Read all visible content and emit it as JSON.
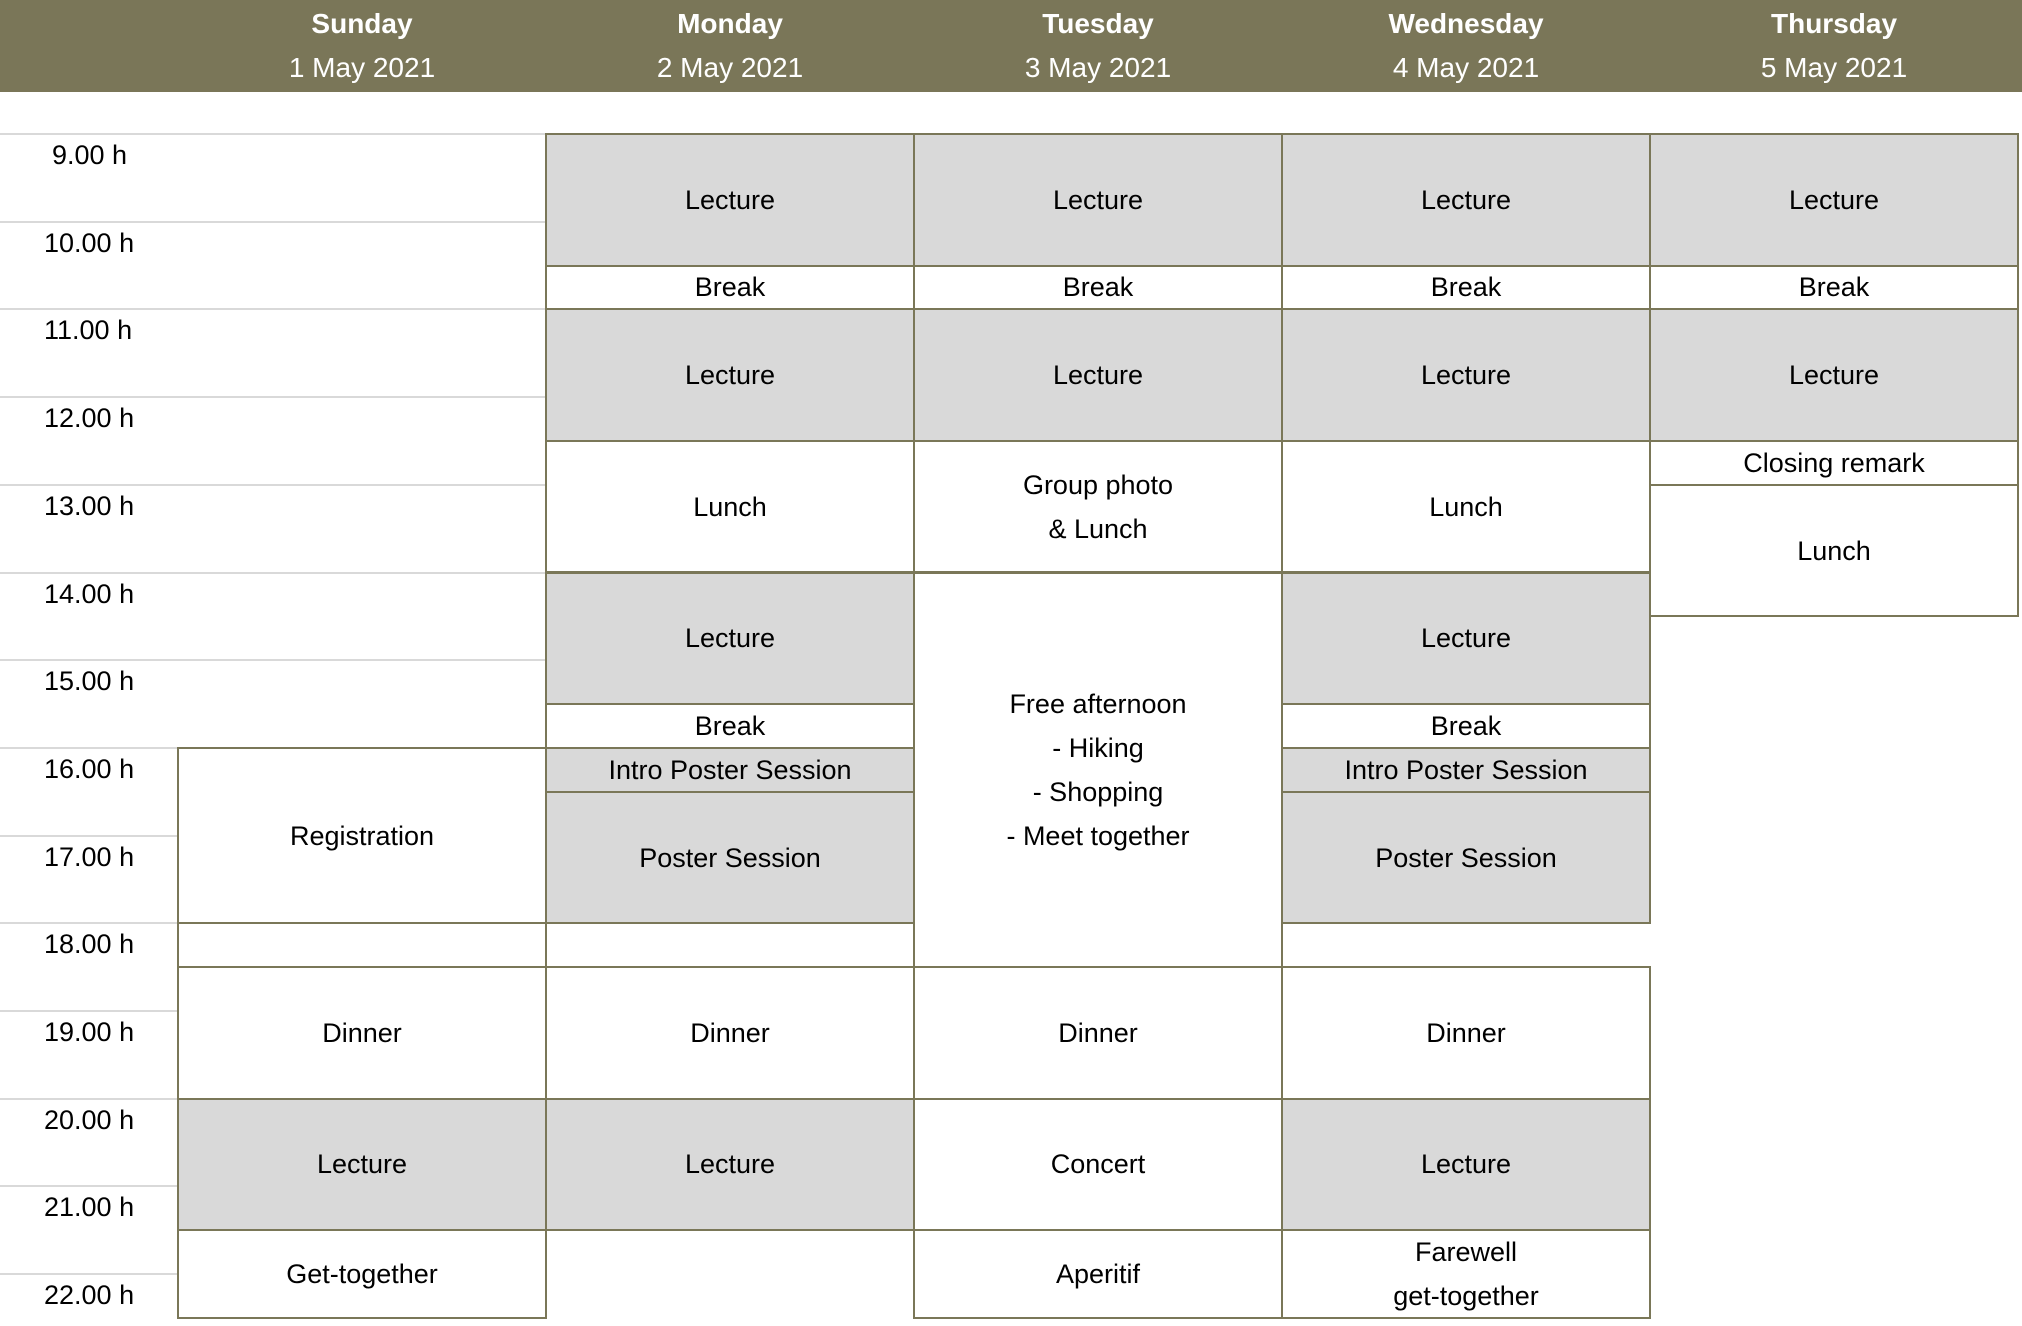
{
  "colors": {
    "header": "#7a7658",
    "border": "#7a7758",
    "lecture_fill": "#d9d9d9",
    "gridline": "#d9d9d9"
  },
  "days": [
    {
      "name": "Sunday",
      "date": "1 May 2021"
    },
    {
      "name": "Monday",
      "date": "2 May 2021"
    },
    {
      "name": "Tuesday",
      "date": "3 May 2021"
    },
    {
      "name": "Wednesday",
      "date": "4 May 2021"
    },
    {
      "name": "Thursday",
      "date": "5 May 2021"
    }
  ],
  "times": [
    "9.00 h",
    "10.00 h",
    "11.00 h",
    "12.00 h",
    "13.00 h",
    "14.00 h",
    "15.00 h",
    "16.00 h",
    "17.00 h",
    "18.00 h",
    "19.00 h",
    "20.00 h",
    "21.00 h",
    "22.00 h"
  ],
  "events": [
    {
      "day": 0,
      "start": 16,
      "end": 18,
      "label": "Registration",
      "gray": false
    },
    {
      "day": 0,
      "start": 18,
      "end": 18.5,
      "label": "",
      "gray": false
    },
    {
      "day": 0,
      "start": 18.5,
      "end": 20,
      "label": "Dinner",
      "gray": false
    },
    {
      "day": 0,
      "start": 20,
      "end": 21.5,
      "label": "Lecture",
      "gray": true
    },
    {
      "day": 0,
      "start": 21.5,
      "end": 22.5,
      "label": "Get-together",
      "gray": false
    },
    {
      "day": 1,
      "start": 9,
      "end": 10.5,
      "label": "Lecture",
      "gray": true
    },
    {
      "day": 1,
      "start": 10.5,
      "end": 11,
      "label": "Break",
      "gray": false
    },
    {
      "day": 1,
      "start": 11,
      "end": 12.5,
      "label": "Lecture",
      "gray": true
    },
    {
      "day": 1,
      "start": 12.5,
      "end": 14,
      "label": "Lunch",
      "gray": false
    },
    {
      "day": 1,
      "start": 14,
      "end": 15.5,
      "label": "Lecture",
      "gray": true
    },
    {
      "day": 1,
      "start": 15.5,
      "end": 16,
      "label": "Break",
      "gray": false
    },
    {
      "day": 1,
      "start": 16,
      "end": 16.5,
      "label": "Intro Poster Session",
      "gray": true
    },
    {
      "day": 1,
      "start": 16.5,
      "end": 18,
      "label": "Poster Session",
      "gray": true
    },
    {
      "day": 1,
      "start": 18,
      "end": 18.5,
      "label": "",
      "gray": false
    },
    {
      "day": 1,
      "start": 18.5,
      "end": 20,
      "label": "Dinner",
      "gray": false
    },
    {
      "day": 1,
      "start": 20,
      "end": 21.5,
      "label": "Lecture",
      "gray": true
    },
    {
      "day": 2,
      "start": 9,
      "end": 10.5,
      "label": "Lecture",
      "gray": true
    },
    {
      "day": 2,
      "start": 10.5,
      "end": 11,
      "label": "Break",
      "gray": false
    },
    {
      "day": 2,
      "start": 11,
      "end": 12.5,
      "label": "Lecture",
      "gray": true
    },
    {
      "day": 2,
      "start": 12.5,
      "end": 14,
      "label": "Group photo\n& Lunch",
      "gray": false
    },
    {
      "day": 2,
      "start": 14,
      "end": 18.5,
      "label": "Free afternoon\n- Hiking\n- Shopping\n- Meet together",
      "gray": false
    },
    {
      "day": 2,
      "start": 18.5,
      "end": 20,
      "label": "Dinner",
      "gray": false
    },
    {
      "day": 2,
      "start": 20,
      "end": 21.5,
      "label": "Concert",
      "gray": false
    },
    {
      "day": 2,
      "start": 21.5,
      "end": 22.5,
      "label": "Aperitif",
      "gray": false
    },
    {
      "day": 3,
      "start": 9,
      "end": 10.5,
      "label": "Lecture",
      "gray": true
    },
    {
      "day": 3,
      "start": 10.5,
      "end": 11,
      "label": "Break",
      "gray": false
    },
    {
      "day": 3,
      "start": 11,
      "end": 12.5,
      "label": "Lecture",
      "gray": true
    },
    {
      "day": 3,
      "start": 12.5,
      "end": 14,
      "label": "Lunch",
      "gray": false
    },
    {
      "day": 3,
      "start": 14,
      "end": 15.5,
      "label": "Lecture",
      "gray": true
    },
    {
      "day": 3,
      "start": 15.5,
      "end": 16,
      "label": "Break",
      "gray": false
    },
    {
      "day": 3,
      "start": 16,
      "end": 16.5,
      "label": "Intro Poster Session",
      "gray": true
    },
    {
      "day": 3,
      "start": 16.5,
      "end": 18,
      "label": "Poster Session",
      "gray": true
    },
    {
      "day": 3,
      "start": 18.5,
      "end": 20,
      "label": "Dinner",
      "gray": false
    },
    {
      "day": 3,
      "start": 20,
      "end": 21.5,
      "label": "Lecture",
      "gray": true
    },
    {
      "day": 3,
      "start": 21.5,
      "end": 22.5,
      "label": "Farewell\nget-together",
      "gray": false
    },
    {
      "day": 4,
      "start": 9,
      "end": 10.5,
      "label": "Lecture",
      "gray": true
    },
    {
      "day": 4,
      "start": 10.5,
      "end": 11,
      "label": "Break",
      "gray": false
    },
    {
      "day": 4,
      "start": 11,
      "end": 12.5,
      "label": "Lecture",
      "gray": true
    },
    {
      "day": 4,
      "start": 12.5,
      "end": 13,
      "label": "Closing remark",
      "gray": false
    },
    {
      "day": 4,
      "start": 13,
      "end": 14.5,
      "label": "Lunch",
      "gray": false
    }
  ]
}
